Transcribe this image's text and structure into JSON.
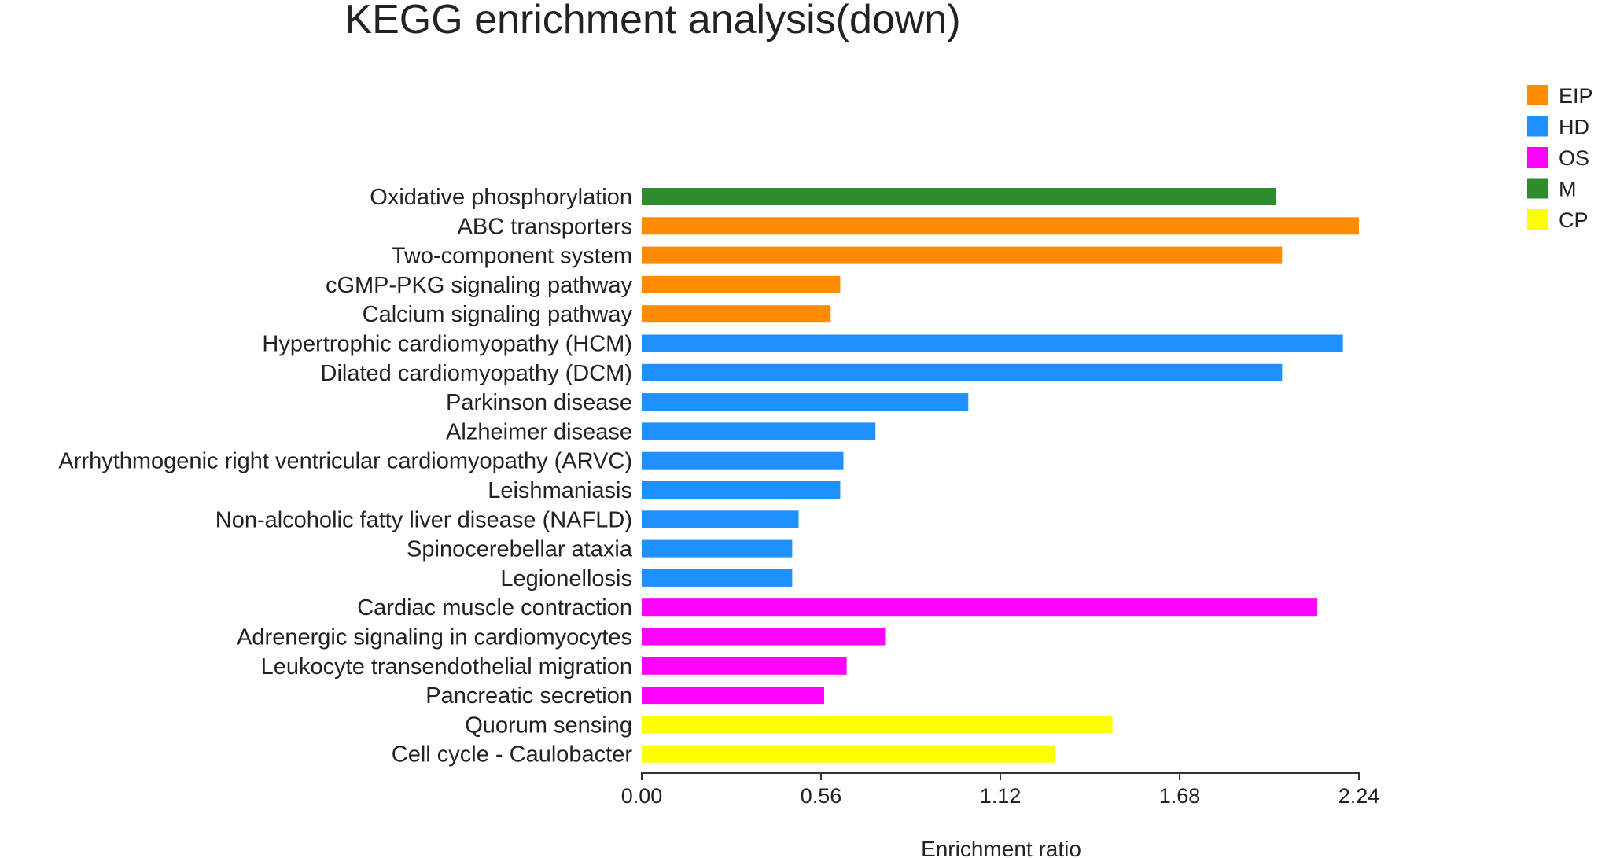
{
  "chart_data": {
    "type": "bar",
    "orientation": "horizontal",
    "title": "KEGG enrichment analysis(down)",
    "xlabel": "Enrichment ratio",
    "ylabel": "",
    "xlim": [
      0,
      2.24
    ],
    "xticks": [
      "0.00",
      "0.56",
      "1.12",
      "1.68",
      "2.24"
    ],
    "legend_position": "top-right",
    "legend": [
      {
        "key": "EIP",
        "label": "EIP",
        "color": "#ff8c00"
      },
      {
        "key": "HD",
        "label": "HD",
        "color": "#1e90ff"
      },
      {
        "key": "OS",
        "label": "OS",
        "color": "#ff00ff"
      },
      {
        "key": "M",
        "label": "M",
        "color": "#2e8b2e"
      },
      {
        "key": "CP",
        "label": "CP",
        "color": "#ffff00"
      }
    ],
    "categories": [
      "Oxidative phosphorylation",
      "ABC transporters",
      "Two-component system",
      "cGMP-PKG signaling pathway",
      "Calcium signaling pathway",
      "Hypertrophic cardiomyopathy (HCM)",
      "Dilated cardiomyopathy (DCM)",
      "Parkinson disease",
      "Alzheimer disease",
      "Arrhythmogenic right ventricular cardiomyopathy (ARVC)",
      "Leishmaniasis",
      "Non-alcoholic fatty liver disease (NAFLD)",
      "Spinocerebellar ataxia",
      "Legionellosis",
      "Cardiac muscle contraction",
      "Adrenergic signaling in cardiomyocytes",
      "Leukocyte transendothelial migration",
      "Pancreatic secretion",
      "Quorum sensing",
      "Cell cycle - Caulobacter"
    ],
    "values": [
      1.98,
      2.24,
      2.0,
      0.62,
      0.59,
      2.19,
      2.0,
      1.02,
      0.73,
      0.63,
      0.62,
      0.49,
      0.47,
      0.47,
      2.11,
      0.76,
      0.64,
      0.57,
      1.47,
      1.29
    ],
    "groups": [
      "M",
      "EIP",
      "EIP",
      "EIP",
      "EIP",
      "HD",
      "HD",
      "HD",
      "HD",
      "HD",
      "HD",
      "HD",
      "HD",
      "HD",
      "OS",
      "OS",
      "OS",
      "OS",
      "CP",
      "CP"
    ]
  }
}
